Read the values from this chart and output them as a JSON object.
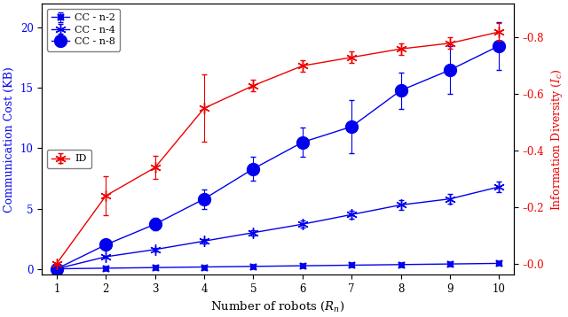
{
  "x": [
    1,
    2,
    3,
    4,
    5,
    6,
    7,
    8,
    9,
    10
  ],
  "cc_n2": [
    0.0,
    0.05,
    0.1,
    0.15,
    0.2,
    0.25,
    0.3,
    0.35,
    0.4,
    0.45
  ],
  "cc_n2_err": [
    0.0,
    0.01,
    0.02,
    0.02,
    0.02,
    0.03,
    0.03,
    0.03,
    0.04,
    0.04
  ],
  "cc_n4": [
    0.0,
    1.0,
    1.6,
    2.3,
    3.0,
    3.7,
    4.5,
    5.3,
    5.8,
    6.8
  ],
  "cc_n4_err": [
    0.0,
    0.1,
    0.15,
    0.18,
    0.22,
    0.28,
    0.32,
    0.38,
    0.4,
    0.45
  ],
  "cc_n8": [
    0.0,
    2.0,
    3.7,
    5.8,
    8.3,
    10.5,
    11.8,
    14.8,
    16.5,
    18.5
  ],
  "cc_n8_err": [
    0.0,
    0.25,
    0.5,
    0.8,
    1.0,
    1.2,
    2.2,
    1.5,
    2.0,
    2.0
  ],
  "id": [
    0.0,
    0.24,
    0.34,
    0.55,
    0.63,
    0.7,
    0.73,
    0.76,
    0.78,
    0.82
  ],
  "id_err": [
    0.0,
    0.07,
    0.04,
    0.12,
    0.02,
    0.02,
    0.02,
    0.02,
    0.02,
    0.03
  ],
  "xlabel": "Number of robots ($R_n$)",
  "ylabel_left": "Communication Cost (KB)",
  "ylabel_right": "Information Diversity ($I_c$)",
  "legend_cc_n2": "CC - n-2",
  "legend_cc_n4": "CC - n-4",
  "legend_cc_n8": "CC - n-8",
  "legend_id": "ID",
  "blue_color": "#0000ee",
  "red_color": "#ee0000",
  "ylim_left": [
    -0.5,
    22
  ],
  "ylim_right": [
    -0.04,
    0.92
  ],
  "xlim": [
    0.7,
    10.3
  ]
}
